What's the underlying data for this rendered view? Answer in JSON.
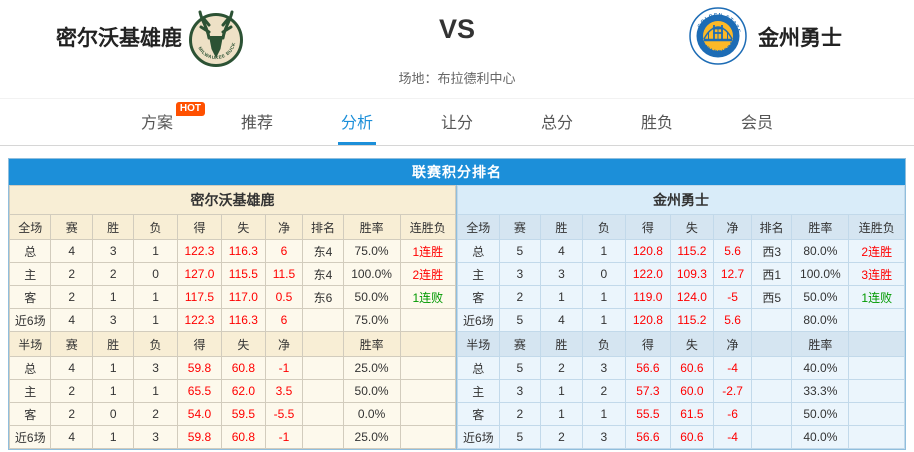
{
  "colors": {
    "accent": "#1c8fd9",
    "hot_badge": "#ff5000",
    "stat_red": "#ff0000",
    "streak_loss_green": "#009900",
    "home_panel_header_bg": "#f8eed5",
    "home_panel_body_bg": "#fdf9ec",
    "away_panel_header_bg": "#d9ecf9",
    "away_panel_body_bg": "#ebf5fc"
  },
  "header": {
    "home_team": {
      "name": "密尔沃基雄鹿",
      "logo": "milwaukee-bucks"
    },
    "vs_label": "VS",
    "away_team": {
      "name": "金州勇士",
      "logo": "golden-state-warriors"
    },
    "venue": "场地：布拉德利中心"
  },
  "nav": {
    "tabs": [
      {
        "label": "方案",
        "badge": "HOT",
        "active": false
      },
      {
        "label": "推荐",
        "active": false
      },
      {
        "label": "分析",
        "active": true
      },
      {
        "label": "让分",
        "active": false
      },
      {
        "label": "总分",
        "active": false
      },
      {
        "label": "胜负",
        "active": false
      },
      {
        "label": "会员",
        "active": false
      }
    ]
  },
  "standings": {
    "title": "联赛积分排名",
    "teams": [
      {
        "name": "密尔沃基雄鹿",
        "sections": [
          {
            "headers": [
              "全场",
              "赛",
              "胜",
              "负",
              "得",
              "失",
              "净",
              "排名",
              "胜率",
              "连胜负"
            ],
            "rows": [
              {
                "cells": [
                  "总",
                  "4",
                  "3",
                  "1",
                  "122.3",
                  "116.3",
                  "6",
                  "东4",
                  "75.0%",
                  "1连胜"
                ],
                "streak": "win"
              },
              {
                "cells": [
                  "主",
                  "2",
                  "2",
                  "0",
                  "127.0",
                  "115.5",
                  "11.5",
                  "东4",
                  "100.0%",
                  "2连胜"
                ],
                "streak": "win"
              },
              {
                "cells": [
                  "客",
                  "2",
                  "1",
                  "1",
                  "117.5",
                  "117.0",
                  "0.5",
                  "东6",
                  "50.0%",
                  "1连败"
                ],
                "streak": "loss"
              },
              {
                "cells": [
                  "近6场",
                  "4",
                  "3",
                  "1",
                  "122.3",
                  "116.3",
                  "6",
                  "",
                  "75.0%",
                  ""
                ],
                "streak": ""
              }
            ]
          },
          {
            "headers": [
              "半场",
              "赛",
              "胜",
              "负",
              "得",
              "失",
              "净",
              "",
              "胜率",
              ""
            ],
            "rows": [
              {
                "cells": [
                  "总",
                  "4",
                  "1",
                  "3",
                  "59.8",
                  "60.8",
                  "-1",
                  "",
                  "25.0%",
                  ""
                ],
                "streak": ""
              },
              {
                "cells": [
                  "主",
                  "2",
                  "1",
                  "1",
                  "65.5",
                  "62.0",
                  "3.5",
                  "",
                  "50.0%",
                  ""
                ],
                "streak": ""
              },
              {
                "cells": [
                  "客",
                  "2",
                  "0",
                  "2",
                  "54.0",
                  "59.5",
                  "-5.5",
                  "",
                  "0.0%",
                  ""
                ],
                "streak": ""
              },
              {
                "cells": [
                  "近6场",
                  "4",
                  "1",
                  "3",
                  "59.8",
                  "60.8",
                  "-1",
                  "",
                  "25.0%",
                  ""
                ],
                "streak": ""
              }
            ]
          }
        ]
      },
      {
        "name": "金州勇士",
        "sections": [
          {
            "headers": [
              "全场",
              "赛",
              "胜",
              "负",
              "得",
              "失",
              "净",
              "排名",
              "胜率",
              "连胜负"
            ],
            "rows": [
              {
                "cells": [
                  "总",
                  "5",
                  "4",
                  "1",
                  "120.8",
                  "115.2",
                  "5.6",
                  "西3",
                  "80.0%",
                  "2连胜"
                ],
                "streak": "win"
              },
              {
                "cells": [
                  "主",
                  "3",
                  "3",
                  "0",
                  "122.0",
                  "109.3",
                  "12.7",
                  "西1",
                  "100.0%",
                  "3连胜"
                ],
                "streak": "win"
              },
              {
                "cells": [
                  "客",
                  "2",
                  "1",
                  "1",
                  "119.0",
                  "124.0",
                  "-5",
                  "西5",
                  "50.0%",
                  "1连败"
                ],
                "streak": "loss"
              },
              {
                "cells": [
                  "近6场",
                  "5",
                  "4",
                  "1",
                  "120.8",
                  "115.2",
                  "5.6",
                  "",
                  "80.0%",
                  ""
                ],
                "streak": ""
              }
            ]
          },
          {
            "headers": [
              "半场",
              "赛",
              "胜",
              "负",
              "得",
              "失",
              "净",
              "",
              "胜率",
              ""
            ],
            "rows": [
              {
                "cells": [
                  "总",
                  "5",
                  "2",
                  "3",
                  "56.6",
                  "60.6",
                  "-4",
                  "",
                  "40.0%",
                  ""
                ],
                "streak": ""
              },
              {
                "cells": [
                  "主",
                  "3",
                  "1",
                  "2",
                  "57.3",
                  "60.0",
                  "-2.7",
                  "",
                  "33.3%",
                  ""
                ],
                "streak": ""
              },
              {
                "cells": [
                  "客",
                  "2",
                  "1",
                  "1",
                  "55.5",
                  "61.5",
                  "-6",
                  "",
                  "50.0%",
                  ""
                ],
                "streak": ""
              },
              {
                "cells": [
                  "近6场",
                  "5",
                  "2",
                  "3",
                  "56.6",
                  "60.6",
                  "-4",
                  "",
                  "40.0%",
                  ""
                ],
                "streak": ""
              }
            ]
          }
        ]
      }
    ]
  }
}
